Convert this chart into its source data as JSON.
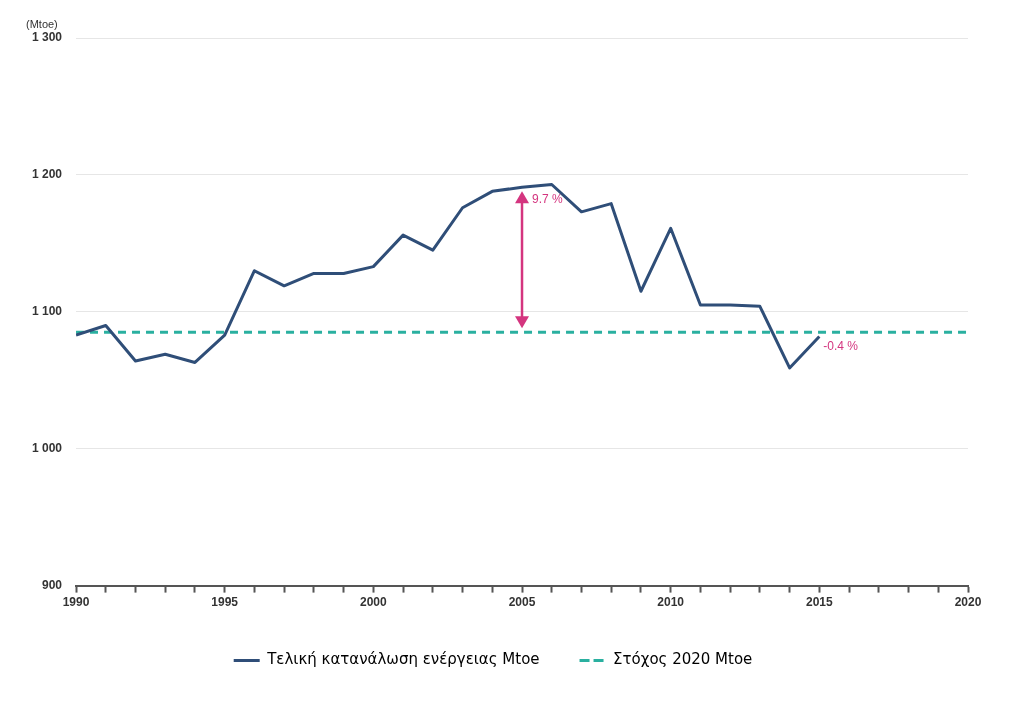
{
  "chart_data": {
    "type": "line",
    "ylabel": "(Mtoe)",
    "x": [
      1990,
      1991,
      1992,
      1993,
      1994,
      1995,
      1996,
      1997,
      1998,
      1999,
      2000,
      2001,
      2002,
      2003,
      2004,
      2005,
      2006,
      2007,
      2008,
      2009,
      2010,
      2011,
      2012,
      2013,
      2014,
      2015
    ],
    "series": [
      {
        "name": "Τελική κατανάλωση ενέργειας Mtoe",
        "color": "#2f4e78",
        "values": [
          1083,
          1090,
          1064,
          1069,
          1063,
          1083,
          1130,
          1119,
          1128,
          1128,
          1133,
          1156,
          1145,
          1176,
          1188,
          1191,
          1193,
          1173,
          1179,
          1115,
          1161,
          1105,
          1105,
          1104,
          1059,
          1082
        ]
      },
      {
        "name": "Στόχος 2020 Mtoe",
        "color": "#2ab0a0",
        "line_style": "dashed",
        "x": [
          1990,
          2020
        ],
        "values": [
          1085,
          1085
        ]
      }
    ],
    "xlim": [
      1990,
      2020
    ],
    "xticks": [
      1990,
      {
        "value": 1991,
        "label": null
      },
      {
        "value": 1992,
        "label": null
      },
      {
        "value": 1993,
        "label": null
      },
      {
        "value": 1994,
        "label": null
      },
      1995,
      {
        "value": 1996,
        "label": null
      },
      {
        "value": 1997,
        "label": null
      },
      {
        "value": 1998,
        "label": null
      },
      {
        "value": 1999,
        "label": null
      },
      2000,
      {
        "value": 2001,
        "label": null
      },
      {
        "value": 2002,
        "label": null
      },
      {
        "value": 2003,
        "label": null
      },
      {
        "value": 2004,
        "label": null
      },
      2005,
      {
        "value": 2006,
        "label": null
      },
      {
        "value": 2007,
        "label": null
      },
      {
        "value": 2008,
        "label": null
      },
      {
        "value": 2009,
        "label": null
      },
      2010,
      {
        "value": 2011,
        "label": null
      },
      {
        "value": 2012,
        "label": null
      },
      {
        "value": 2013,
        "label": null
      },
      {
        "value": 2014,
        "label": null
      },
      2015,
      {
        "value": 2016,
        "label": null
      },
      {
        "value": 2017,
        "label": null
      },
      {
        "value": 2018,
        "label": null
      },
      {
        "value": 2019,
        "label": null
      },
      2020
    ],
    "ylim": [
      900,
      1300
    ],
    "yticks": [
      {
        "value": 900,
        "label": "900"
      },
      {
        "value": 1000,
        "label": "1 000"
      },
      {
        "value": 1100,
        "label": "1 100"
      },
      {
        "value": 1200,
        "label": "1 200"
      },
      {
        "value": 1300,
        "label": "1 300"
      }
    ],
    "grid": "y",
    "legend": "bottom",
    "marker": "none",
    "line_style": "solid",
    "annotations": [
      {
        "text": "9.7 %",
        "x": 2005,
        "y": 1191
      },
      {
        "text": "-0.4 %",
        "x": 2015,
        "y": 1082
      }
    ]
  }
}
